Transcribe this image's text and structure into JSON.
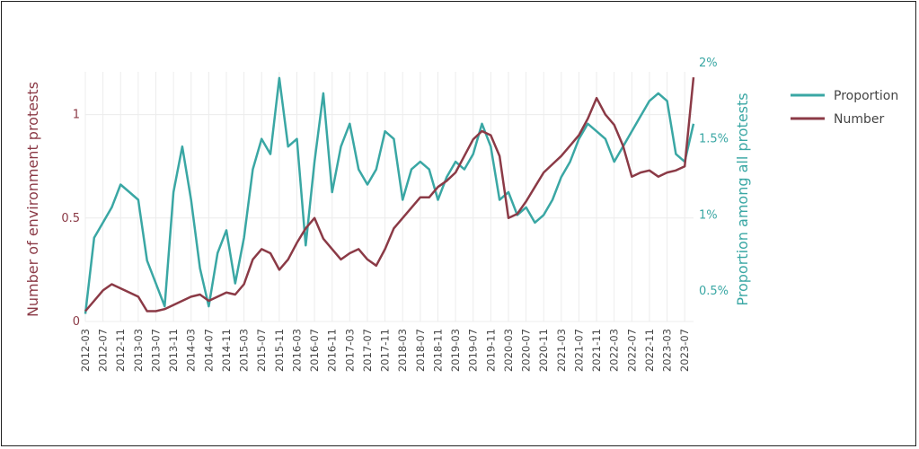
{
  "chart_data": {
    "type": "line",
    "xlabel": "",
    "ylabel_left": "Number of environment protests",
    "ylabel_right": "Proportion among all protests",
    "left_ticks": [
      "0",
      "0.5",
      "1"
    ],
    "right_ticks": [
      "0.5%",
      "1%",
      "1.5%",
      "2%"
    ],
    "ylim_left": [
      0,
      1.25
    ],
    "ylim_right": [
      0.3,
      2.0
    ],
    "x_ticks": [
      "2012-03",
      "2012-07",
      "2012-11",
      "2013-03",
      "2013-07",
      "2013-11",
      "2014-03",
      "2014-07",
      "2014-11",
      "2015-03",
      "2015-07",
      "2015-11",
      "2016-03",
      "2016-07",
      "2016-11",
      "2017-03",
      "2017-07",
      "2017-11",
      "2018-03",
      "2018-07",
      "2018-11",
      "2019-03",
      "2019-07",
      "2019-11",
      "2020-03",
      "2020-07",
      "2020-11",
      "2021-03",
      "2021-07",
      "2021-11",
      "2022-03",
      "2022-07",
      "2022-11",
      "2023-03",
      "2023-07"
    ],
    "grid": true,
    "legend_position": "right",
    "series": [
      {
        "name": "Proportion",
        "axis": "right",
        "color": "#3aa7a4",
        "x": [
          "2012-03",
          "2012-05",
          "2012-07",
          "2012-09",
          "2012-11",
          "2013-01",
          "2013-03",
          "2013-05",
          "2013-07",
          "2013-09",
          "2013-11",
          "2014-01",
          "2014-03",
          "2014-05",
          "2014-07",
          "2014-09",
          "2014-11",
          "2015-01",
          "2015-03",
          "2015-05",
          "2015-07",
          "2015-09",
          "2015-11",
          "2016-01",
          "2016-03",
          "2016-05",
          "2016-07",
          "2016-09",
          "2016-11",
          "2017-01",
          "2017-03",
          "2017-05",
          "2017-07",
          "2017-09",
          "2017-11",
          "2018-01",
          "2018-03",
          "2018-05",
          "2018-07",
          "2018-09",
          "2018-11",
          "2019-01",
          "2019-03",
          "2019-05",
          "2019-07",
          "2019-09",
          "2019-11",
          "2020-01",
          "2020-03",
          "2020-05",
          "2020-07",
          "2020-09",
          "2020-11",
          "2021-01",
          "2021-03",
          "2021-05",
          "2021-07",
          "2021-09",
          "2021-11",
          "2022-01",
          "2022-03",
          "2022-05",
          "2022-07",
          "2022-09",
          "2022-11",
          "2023-01",
          "2023-03",
          "2023-05",
          "2023-07",
          "2023-09"
        ],
        "values": [
          0.35,
          0.85,
          0.95,
          1.05,
          1.2,
          1.15,
          1.1,
          0.7,
          0.55,
          0.4,
          1.15,
          1.45,
          1.1,
          0.65,
          0.4,
          0.75,
          0.9,
          0.55,
          0.85,
          1.3,
          1.5,
          1.4,
          1.9,
          1.45,
          1.5,
          0.8,
          1.35,
          1.8,
          1.15,
          1.45,
          1.6,
          1.3,
          1.2,
          1.3,
          1.55,
          1.5,
          1.1,
          1.3,
          1.35,
          1.3,
          1.1,
          1.25,
          1.35,
          1.3,
          1.4,
          1.6,
          1.45,
          1.1,
          1.15,
          1.0,
          1.05,
          0.95,
          1.0,
          1.1,
          1.25,
          1.35,
          1.5,
          1.6,
          1.55,
          1.5,
          1.35,
          1.45,
          1.55,
          1.65,
          1.75,
          1.8,
          1.75,
          1.4,
          1.35,
          1.6
        ]
      },
      {
        "name": "Number",
        "axis": "left",
        "color": "#8b3a46",
        "x": [
          "2012-03",
          "2012-05",
          "2012-07",
          "2012-09",
          "2012-11",
          "2013-01",
          "2013-03",
          "2013-05",
          "2013-07",
          "2013-09",
          "2013-11",
          "2014-01",
          "2014-03",
          "2014-05",
          "2014-07",
          "2014-09",
          "2014-11",
          "2015-01",
          "2015-03",
          "2015-05",
          "2015-07",
          "2015-09",
          "2015-11",
          "2016-01",
          "2016-03",
          "2016-05",
          "2016-07",
          "2016-09",
          "2016-11",
          "2017-01",
          "2017-03",
          "2017-05",
          "2017-07",
          "2017-09",
          "2017-11",
          "2018-01",
          "2018-03",
          "2018-05",
          "2018-07",
          "2018-09",
          "2018-11",
          "2019-01",
          "2019-03",
          "2019-05",
          "2019-07",
          "2019-09",
          "2019-11",
          "2020-01",
          "2020-03",
          "2020-05",
          "2020-07",
          "2020-09",
          "2020-11",
          "2021-01",
          "2021-03",
          "2021-05",
          "2021-07",
          "2021-09",
          "2021-11",
          "2022-01",
          "2022-03",
          "2022-05",
          "2022-07",
          "2022-09",
          "2022-11",
          "2023-01",
          "2023-03",
          "2023-05",
          "2023-07",
          "2023-09"
        ],
        "values": [
          0.05,
          0.1,
          0.15,
          0.18,
          0.16,
          0.14,
          0.12,
          0.05,
          0.05,
          0.06,
          0.08,
          0.1,
          0.12,
          0.13,
          0.1,
          0.12,
          0.14,
          0.13,
          0.18,
          0.3,
          0.35,
          0.33,
          0.25,
          0.3,
          0.38,
          0.45,
          0.5,
          0.4,
          0.35,
          0.3,
          0.33,
          0.35,
          0.3,
          0.27,
          0.35,
          0.45,
          0.5,
          0.55,
          0.6,
          0.6,
          0.65,
          0.68,
          0.72,
          0.8,
          0.88,
          0.92,
          0.9,
          0.8,
          0.5,
          0.52,
          0.58,
          0.65,
          0.72,
          0.76,
          0.8,
          0.85,
          0.9,
          0.98,
          1.08,
          1.0,
          0.95,
          0.85,
          0.7,
          0.72,
          0.73,
          0.7,
          0.72,
          0.73,
          0.75,
          1.18
        ]
      }
    ]
  }
}
